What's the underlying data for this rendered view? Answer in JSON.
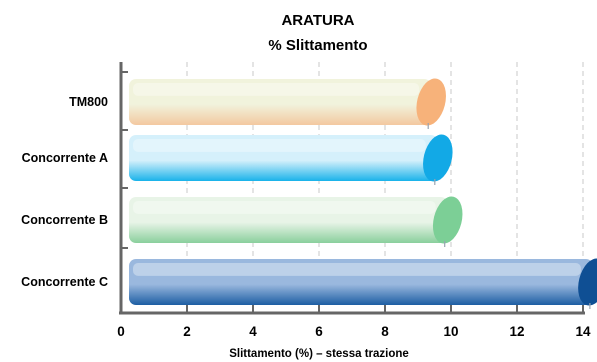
{
  "chart_data": {
    "type": "bar",
    "orientation": "horizontal",
    "title": "ARATURA",
    "subtitle": "% Slittamento",
    "xlabel": "Slittamento (%) – stessa trazione",
    "categories": [
      "TM800",
      "Concorrente A",
      "Concorrente B",
      "Concorrente C"
    ],
    "values": [
      9.4,
      9.6,
      9.9,
      14.3
    ],
    "xlim": [
      0,
      14
    ],
    "xticks": [
      "0",
      "2",
      "4",
      "6",
      "8",
      "10",
      "12",
      "14"
    ],
    "grid": true,
    "colors": [
      {
        "body_light": "#f1f3dc",
        "body_dark": "#f3c8a0",
        "cap": "#f7b27a"
      },
      {
        "body_light": "#d5f0fb",
        "body_dark": "#19b2ea",
        "cap": "#12a9e6"
      },
      {
        "body_light": "#e8f4e7",
        "body_dark": "#8acf9c",
        "cap": "#7ccf96"
      },
      {
        "body_light": "#9ab8de",
        "body_dark": "#1d5ea3",
        "cap": "#0f4f94"
      }
    ]
  }
}
